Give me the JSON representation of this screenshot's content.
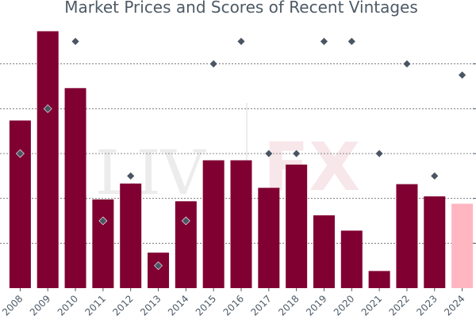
{
  "chart_data": {
    "type": "bar",
    "title": "Market Prices and Scores of Recent Vintages",
    "watermark": [
      "LIV",
      "FX"
    ],
    "categories": [
      "2008",
      "2009",
      "2010",
      "2011",
      "2012",
      "2013",
      "2014",
      "2015",
      "2016",
      "2017",
      "2018",
      "2019",
      "2020",
      "2021",
      "2022",
      "2023",
      "2024"
    ],
    "series": [
      {
        "values": [
          274,
          420,
          327,
          145,
          171,
          58,
          142,
          209,
          209,
          164,
          202,
          119,
          94,
          28,
          170,
          150,
          138
        ],
        "kind": "bar"
      },
      {
        "values": [
          94,
          96,
          99,
          91,
          93,
          89,
          91,
          98,
          99,
          94,
          94,
          99,
          99,
          94,
          98,
          93,
          97.5
        ],
        "kind": "marker"
      }
    ],
    "bar_ylim": [
      0,
      440
    ],
    "score_ylim": [
      88,
      100
    ],
    "grid": true,
    "colors": {
      "bar": "#800032",
      "bar_highlight": "#ffb6c1",
      "marker": "#4a5563",
      "text": "#4d5a66"
    },
    "highlight_index": 16
  }
}
